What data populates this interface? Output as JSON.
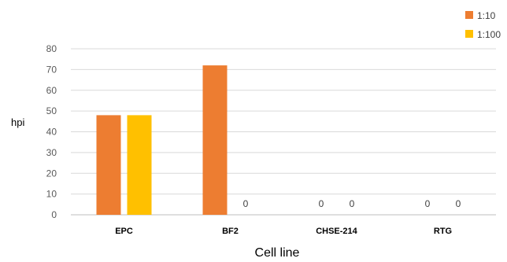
{
  "chart_data": {
    "type": "bar",
    "categories": [
      "EPC",
      "BF2",
      "CHSE-214",
      "RTG"
    ],
    "series": [
      {
        "name": "1:10",
        "values": [
          48,
          72,
          0,
          0
        ],
        "color": "#ED7D31"
      },
      {
        "name": "1:100",
        "values": [
          48,
          0,
          0,
          0
        ],
        "color": "#FFC000"
      }
    ],
    "ylim": [
      0,
      80
    ],
    "yticks": [
      0,
      10,
      20,
      30,
      40,
      50,
      60,
      70,
      80
    ],
    "xlabel": "Cell line",
    "ylabel": "hpi",
    "grid": true,
    "gridColor": "#D9D9D9",
    "legend": "top-right",
    "zeroLabels": "0"
  }
}
